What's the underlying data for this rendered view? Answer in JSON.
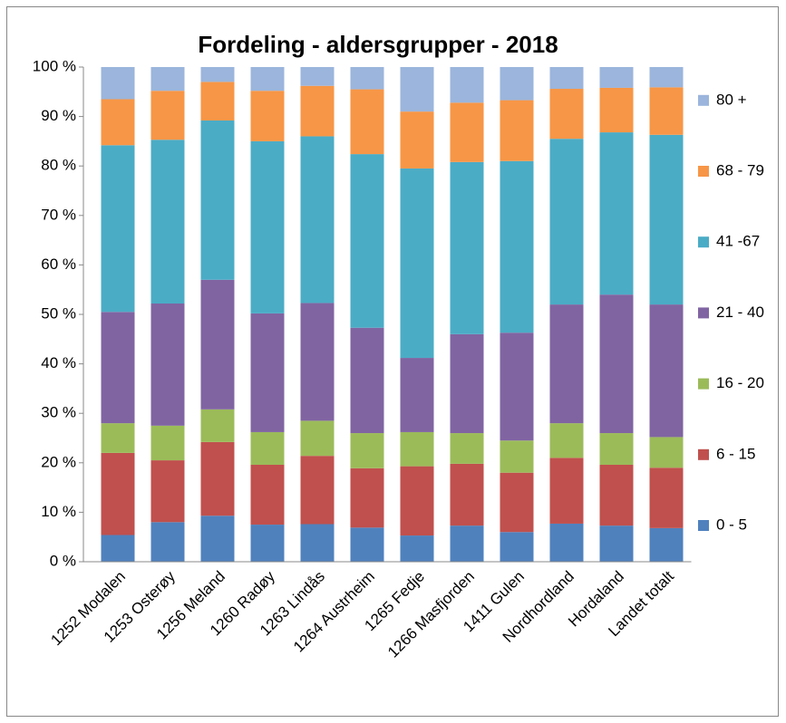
{
  "chart_data": {
    "type": "stacked_bar",
    "title": "Fordeling - aldersgrupper - 2018",
    "categories": [
      "1252 Modalen",
      "1253 Osterøy",
      "1256 Meland",
      "1260 Radøy",
      "1263 Lindås",
      "1264 Austrheim",
      "1265 Fedje",
      "1266 Masfjorden",
      "1411 Gulen",
      "Nordhordland",
      "Hordaland",
      "Landet totalt"
    ],
    "series": [
      {
        "name": "0 - 5",
        "color": "#4f81bd",
        "values": [
          5.4,
          8,
          9.3,
          7.5,
          7.6,
          6.9,
          5.3,
          7.3,
          6,
          7.7,
          7.3,
          6.8
        ]
      },
      {
        "name": "6 - 15",
        "color": "#c0504d",
        "values": [
          16.6,
          12.5,
          14.9,
          12.1,
          13.8,
          12,
          14,
          12.5,
          12,
          13.3,
          12.3,
          12.2
        ]
      },
      {
        "name": "16 - 20",
        "color": "#9bbb59",
        "values": [
          6,
          7,
          6.6,
          6.6,
          7.1,
          7.1,
          6.9,
          6.2,
          6.5,
          7,
          6.4,
          6.2
        ]
      },
      {
        "name": "21 - 40",
        "color": "#8064a2",
        "values": [
          22.5,
          24.7,
          26.2,
          24,
          23.8,
          21.3,
          15,
          20,
          21.8,
          24,
          28,
          26.8
        ]
      },
      {
        "name": "41 -67",
        "color": "#4bacc6",
        "values": [
          33.7,
          33.1,
          32.2,
          34.8,
          33.7,
          35.1,
          38.3,
          34.8,
          34.7,
          33.5,
          32.8,
          34.3
        ]
      },
      {
        "name": "68 - 79",
        "color": "#f79646",
        "values": [
          9.3,
          9.9,
          7.8,
          10.2,
          10.2,
          13.1,
          11.5,
          12,
          12.3,
          10.1,
          9,
          9.6
        ]
      },
      {
        "name": "80 +",
        "color": "#9bb5dc",
        "values": [
          6.5,
          4.8,
          3,
          4.8,
          3.8,
          4.5,
          9,
          7.2,
          6.7,
          4.4,
          4.2,
          4.1
        ]
      }
    ],
    "ylim": [
      0,
      100
    ],
    "yticks": [
      {
        "value": 0,
        "label": "0 %"
      },
      {
        "value": 10,
        "label": "10 %"
      },
      {
        "value": 20,
        "label": "20 %"
      },
      {
        "value": 30,
        "label": "30 %"
      },
      {
        "value": 40,
        "label": "40 %"
      },
      {
        "value": 50,
        "label": "50 %"
      },
      {
        "value": 60,
        "label": "60 %"
      },
      {
        "value": 70,
        "label": "70 %"
      },
      {
        "value": 80,
        "label": "80 %"
      },
      {
        "value": 90,
        "label": "90 %"
      },
      {
        "value": 100,
        "label": "100 %"
      }
    ],
    "legend": "right"
  }
}
